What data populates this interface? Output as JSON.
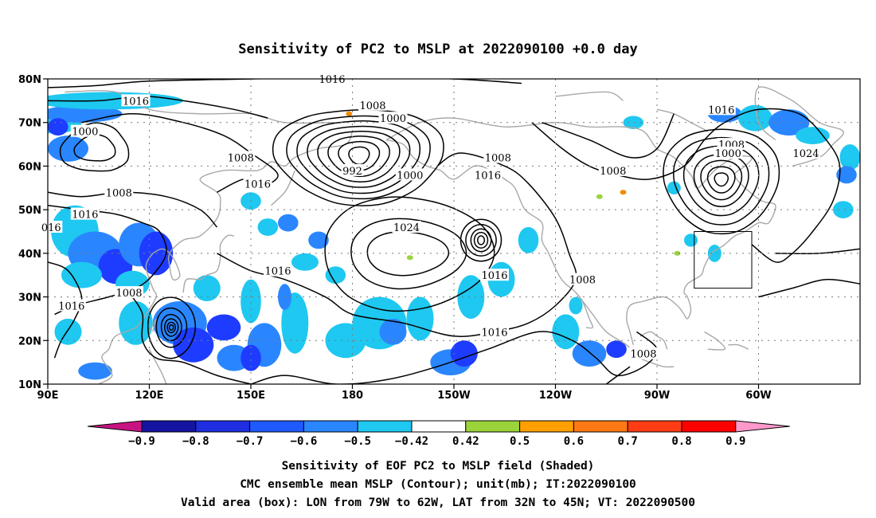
{
  "title": "Sensitivity of PC2 to MSLP at 2022090100 +0.0 day",
  "map": {
    "lat_ticks": [
      "80N",
      "70N",
      "60N",
      "50N",
      "40N",
      "30N",
      "20N",
      "10N"
    ],
    "lon_ticks": [
      "90E",
      "120E",
      "150E",
      "180",
      "150W",
      "120W",
      "90W",
      "60W"
    ],
    "grid": "dotted",
    "shading_colors": {
      "negative_strong": "#1e3cff",
      "negative_medium": "#2a86ff",
      "negative_weak": "#1ec8f0",
      "positive_weak": "#9ad33a",
      "positive_medium": "#f08c00"
    },
    "contour_color": "#000000",
    "coastline_color": "#a8a8a8",
    "contour_labels": [
      {
        "text": "1016",
        "lon": 174,
        "lat": 80
      },
      {
        "text": "1016",
        "lon": 116,
        "lat": 75
      },
      {
        "text": "1008",
        "lon": 186,
        "lat": 74
      },
      {
        "text": "1000",
        "lon": 192,
        "lat": 71
      },
      {
        "text": "1000",
        "lon": 101,
        "lat": 68
      },
      {
        "text": "992",
        "lon": 180,
        "lat": 59
      },
      {
        "text": "1000",
        "lon": 197,
        "lat": 58
      },
      {
        "text": "1008",
        "lon": 147,
        "lat": 62
      },
      {
        "text": "1016",
        "lon": 152,
        "lat": 56
      },
      {
        "text": "1008",
        "lon": 223,
        "lat": 62
      },
      {
        "text": "1016",
        "lon": 220,
        "lat": 58
      },
      {
        "text": "1008",
        "lon": 257,
        "lat": 59
      },
      {
        "text": "1016",
        "lon": 289,
        "lat": 73
      },
      {
        "text": "1008",
        "lon": 292,
        "lat": 65
      },
      {
        "text": "1000",
        "lon": 291,
        "lat": 63
      },
      {
        "text": "1024",
        "lon": 314,
        "lat": 63
      },
      {
        "text": "1008",
        "lon": 111,
        "lat": 54
      },
      {
        "text": "1016",
        "lon": 101,
        "lat": 49
      },
      {
        "text": "016",
        "lon": 91,
        "lat": 46
      },
      {
        "text": "1024",
        "lon": 196,
        "lat": 46
      },
      {
        "text": "1016",
        "lon": 158,
        "lat": 36
      },
      {
        "text": "1016",
        "lon": 222,
        "lat": 35
      },
      {
        "text": "1008",
        "lon": 248,
        "lat": 34
      },
      {
        "text": "1008",
        "lon": 114,
        "lat": 31
      },
      {
        "text": "1016",
        "lon": 97,
        "lat": 28
      },
      {
        "text": "1016",
        "lon": 222,
        "lat": 22
      },
      {
        "text": "1008",
        "lon": 266,
        "lat": 17
      }
    ],
    "lows": [
      {
        "lon": 182,
        "lat": 62
      },
      {
        "lon": 218,
        "lat": 43
      },
      {
        "lon": 127,
        "lat": 23
      },
      {
        "lon": 289,
        "lat": 58
      }
    ],
    "highs": [
      {
        "lon": 196,
        "lat": 40
      }
    ],
    "valid_box": {
      "lon_min": 281,
      "lon_max": 298,
      "lat_min": 32,
      "lat_max": 45
    }
  },
  "colorbar": {
    "labels": [
      "-0.9",
      "-0.8",
      "-0.7",
      "-0.6",
      "-0.5",
      "-0.42",
      "0.42",
      "0.5",
      "0.6",
      "0.7",
      "0.8",
      "0.9"
    ],
    "colors": [
      "#c81482",
      "#1414a0",
      "#1e2ee0",
      "#1e5aff",
      "#2a86ff",
      "#1ec8f0",
      "#ffffff",
      "#9ad33a",
      "#ffa000",
      "#ff7814",
      "#ff3c14",
      "#ff0000",
      "#ff99cc"
    ]
  },
  "caption": {
    "line1": "Sensitivity of EOF PC2 to MSLP field (Shaded)",
    "line2": "CMC ensemble mean MSLP (Contour); unit(mb); IT:2022090100",
    "line3": "Valid area (box): LON from 79W to 62W, LAT from 32N to 45N; VT: 2022090500"
  }
}
